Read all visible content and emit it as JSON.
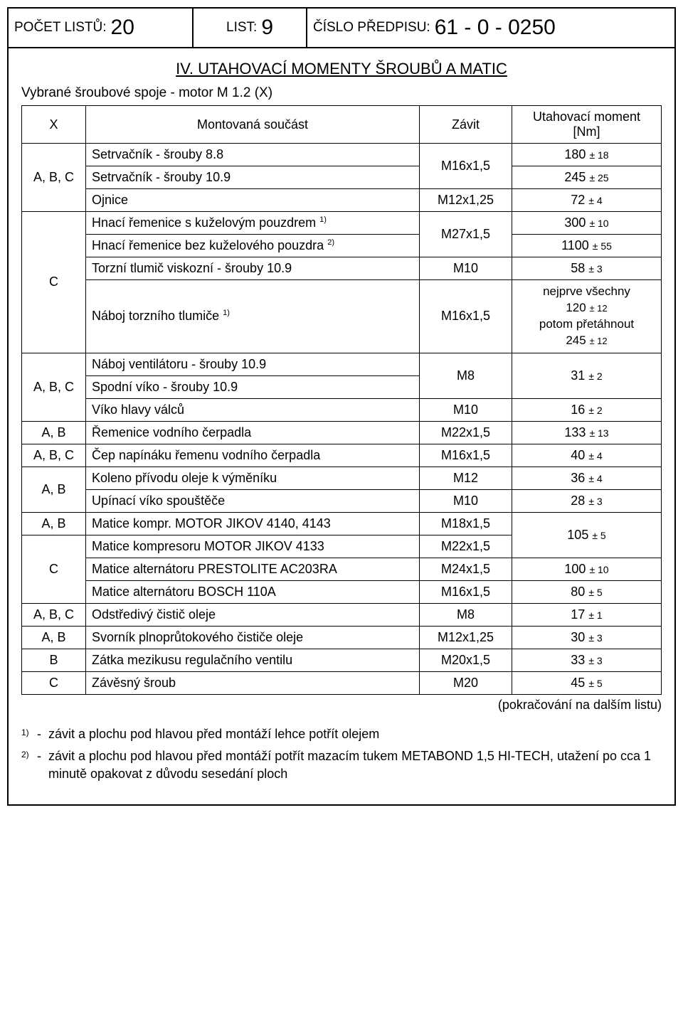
{
  "header": {
    "sheets_label": "POČET LISTŮ:",
    "sheets_value": "20",
    "list_label": "LIST:",
    "list_value": "9",
    "doc_label": "ČÍSLO PŘEDPISU:",
    "doc_value": "61 - 0 - 0250"
  },
  "section_title": "IV. UTAHOVACÍ MOMENTY ŠROUBŮ A MATIC",
  "subtitle": "Vybrané šroubové spoje - motor M 1.2 (X)",
  "table": {
    "head": {
      "x": "X",
      "desc": "Montovaná součást",
      "thread": "Závit",
      "torque": "Utahovací moment [Nm]"
    },
    "groups": [
      {
        "x": "A, B, C",
        "rows": [
          {
            "desc": "Setrvačník - šrouby 8.8",
            "thread": "M16x1,5",
            "thread_rowspan": 2,
            "torque": "180",
            "tol": "± 18"
          },
          {
            "desc": "Setrvačník - šrouby 10.9",
            "torque": "245",
            "tol": "± 25"
          },
          {
            "desc": "Ojnice",
            "thread": "M12x1,25",
            "torque": "72",
            "tol": "± 4"
          }
        ]
      },
      {
        "x": "C",
        "rows": [
          {
            "desc": "Hnací řemenice s kuželovým pouzdrem",
            "sup": "1)",
            "thread": "M27x1,5",
            "thread_rowspan": 2,
            "torque": "300",
            "tol": "± 10"
          },
          {
            "desc": "Hnací řemenice bez kuželového pouzdra",
            "sup": "2)",
            "torque": "1100",
            "tol": "± 55"
          },
          {
            "desc": "Torzní tlumič viskozní - šrouby 10.9",
            "thread": "M10",
            "torque": "58",
            "tol": "± 3"
          },
          {
            "desc": "Náboj torzního tlumiče",
            "sup": "1)",
            "thread": "M16x1,5",
            "torque_multi": {
              "line1": "nejprve všechny",
              "val1": "120",
              "tol1": "± 12",
              "line2": "potom přetáhnout",
              "val2": "245",
              "tol2": "± 12"
            }
          }
        ]
      },
      {
        "x": "A, B, C",
        "rows": [
          {
            "desc": "Náboj ventilátoru - šrouby 10.9",
            "thread": "M8",
            "thread_rowspan": 2,
            "torque": "31",
            "tol": "± 2",
            "torque_rowspan": 2
          },
          {
            "desc": "Spodní víko - šrouby 10.9"
          },
          {
            "desc": "Víko hlavy válců",
            "thread": "M10",
            "torque": "16",
            "tol": "± 2"
          }
        ]
      },
      {
        "x": "A, B",
        "rows": [
          {
            "desc": "Řemenice vodního čerpadla",
            "thread": "M22x1,5",
            "torque": "133",
            "tol": "± 13"
          }
        ]
      },
      {
        "x": "A, B, C",
        "rows": [
          {
            "desc": "Čep napínáku řemenu vodního čerpadla",
            "thread": "M16x1,5",
            "torque": "40",
            "tol": "± 4"
          }
        ]
      },
      {
        "x": "A, B",
        "rows": [
          {
            "desc": "Koleno přívodu oleje k výměníku",
            "thread": "M12",
            "torque": "36",
            "tol": "± 4"
          },
          {
            "desc": "Upínací víko spouštěče",
            "thread": "M10",
            "torque": "28",
            "tol": "± 3"
          }
        ]
      },
      {
        "x": "A, B",
        "rows": [
          {
            "desc": "Matice kompr. MOTOR JIKOV 4140, 4143",
            "thread": "M18x1,5",
            "torque": "105",
            "tol": "± 5",
            "torque_rowspan": 2
          }
        ]
      },
      {
        "x": "C",
        "rows": [
          {
            "desc": "Matice kompresoru MOTOR JIKOV 4133",
            "thread": "M22x1,5"
          },
          {
            "desc": "Matice alternátoru PRESTOLITE AC203RA",
            "thread": "M24x1,5",
            "torque": "100",
            "tol": "± 10"
          },
          {
            "desc": "Matice alternátoru BOSCH 110A",
            "thread": "M16x1,5",
            "torque": "80",
            "tol": "± 5"
          }
        ]
      },
      {
        "x": "A, B, C",
        "rows": [
          {
            "desc": "Odstředivý čistič oleje",
            "thread": "M8",
            "torque": "17",
            "tol": "± 1"
          }
        ]
      },
      {
        "x": "A, B",
        "rows": [
          {
            "desc": "Svorník plnoprůtokového čističe oleje",
            "thread": "M12x1,25",
            "torque": "30",
            "tol": "± 3"
          }
        ]
      },
      {
        "x": "B",
        "rows": [
          {
            "desc": "Zátka mezikusu regulačního ventilu",
            "thread": "M20x1,5",
            "torque": "33",
            "tol": "± 3"
          }
        ]
      },
      {
        "x": "C",
        "rows": [
          {
            "desc": "Závěsný šroub",
            "thread": "M20",
            "torque": "45",
            "tol": "± 5"
          }
        ]
      }
    ]
  },
  "continuation": "(pokračování na dalším listu)",
  "footnotes": [
    {
      "num": "1)",
      "text": "závit a plochu pod hlavou před montáží lehce potřít olejem"
    },
    {
      "num": "2)",
      "text": "závit a plochu pod hlavou před montáží potřít mazacím tukem METABOND 1,5 HI-TECH, utažení po cca 1 minutě opakovat z důvodu sesedání ploch"
    }
  ]
}
